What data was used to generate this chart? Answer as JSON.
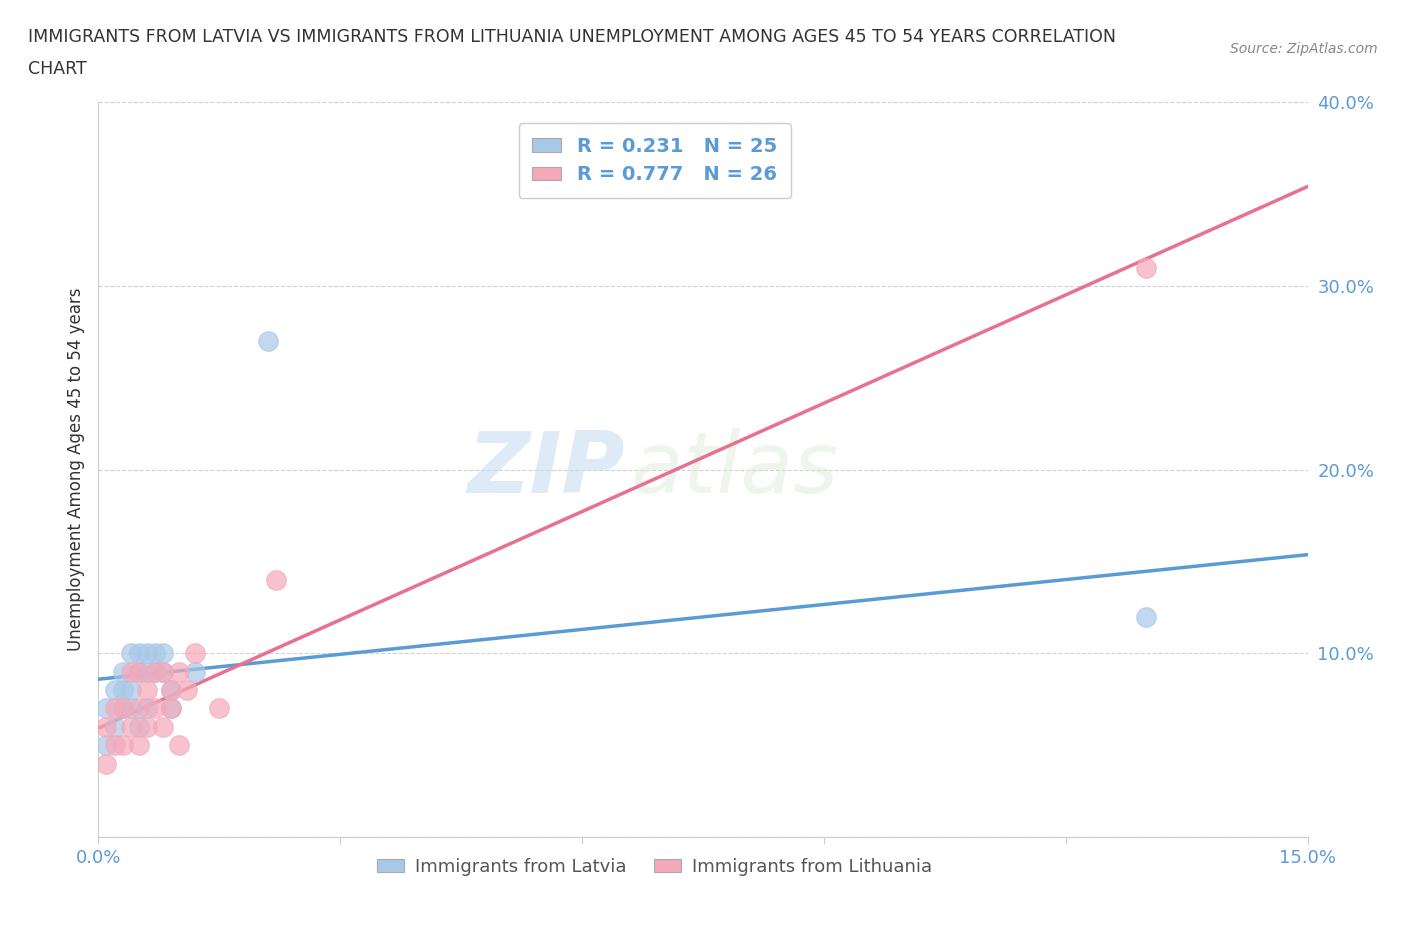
{
  "title_line1": "IMMIGRANTS FROM LATVIA VS IMMIGRANTS FROM LITHUANIA UNEMPLOYMENT AMONG AGES 45 TO 54 YEARS CORRELATION",
  "title_line2": "CHART",
  "source_text": "Source: ZipAtlas.com",
  "ylabel": "Unemployment Among Ages 45 to 54 years",
  "xlim": [
    0.0,
    0.15
  ],
  "ylim": [
    0.0,
    0.4
  ],
  "xticks": [
    0.0,
    0.03,
    0.06,
    0.09,
    0.12,
    0.15
  ],
  "xticklabels": [
    "0.0%",
    "",
    "",
    "",
    "",
    "15.0%"
  ],
  "yticks": [
    0.0,
    0.1,
    0.2,
    0.3,
    0.4
  ],
  "yticklabels": [
    "",
    "10.0%",
    "20.0%",
    "30.0%",
    "40.0%"
  ],
  "R_latvia": 0.231,
  "N_latvia": 25,
  "R_lithuania": 0.777,
  "N_lithuania": 26,
  "latvia_color": "#a8c8e8",
  "lithuania_color": "#f4a8b8",
  "latvia_line_color": "#5b9bd5",
  "lithuania_line_color": "#e87090",
  "watermark_zip": "ZIP",
  "watermark_atlas": "atlas",
  "latvia_x": [
    0.001,
    0.001,
    0.002,
    0.002,
    0.003,
    0.003,
    0.003,
    0.004,
    0.004,
    0.004,
    0.005,
    0.005,
    0.005,
    0.006,
    0.006,
    0.006,
    0.007,
    0.007,
    0.008,
    0.008,
    0.009,
    0.009,
    0.012,
    0.021,
    0.13
  ],
  "latvia_y": [
    0.05,
    0.07,
    0.06,
    0.08,
    0.07,
    0.08,
    0.09,
    0.07,
    0.08,
    0.1,
    0.06,
    0.09,
    0.1,
    0.07,
    0.09,
    0.1,
    0.09,
    0.1,
    0.09,
    0.1,
    0.07,
    0.08,
    0.09,
    0.27,
    0.12
  ],
  "lithuania_x": [
    0.001,
    0.001,
    0.002,
    0.002,
    0.003,
    0.003,
    0.004,
    0.004,
    0.005,
    0.005,
    0.005,
    0.006,
    0.006,
    0.007,
    0.007,
    0.008,
    0.008,
    0.009,
    0.009,
    0.01,
    0.01,
    0.011,
    0.012,
    0.015,
    0.022,
    0.13
  ],
  "lithuania_y": [
    0.04,
    0.06,
    0.05,
    0.07,
    0.05,
    0.07,
    0.06,
    0.09,
    0.05,
    0.07,
    0.09,
    0.06,
    0.08,
    0.07,
    0.09,
    0.06,
    0.09,
    0.07,
    0.08,
    0.05,
    0.09,
    0.08,
    0.1,
    0.07,
    0.14,
    0.31
  ],
  "background_color": "#ffffff",
  "grid_color": "#cccccc",
  "title_color": "#333333",
  "axis_color": "#cccccc",
  "tick_color": "#5b9bd5",
  "legend_label_color": "#5b9bd5",
  "bottom_legend_color": "#555555"
}
